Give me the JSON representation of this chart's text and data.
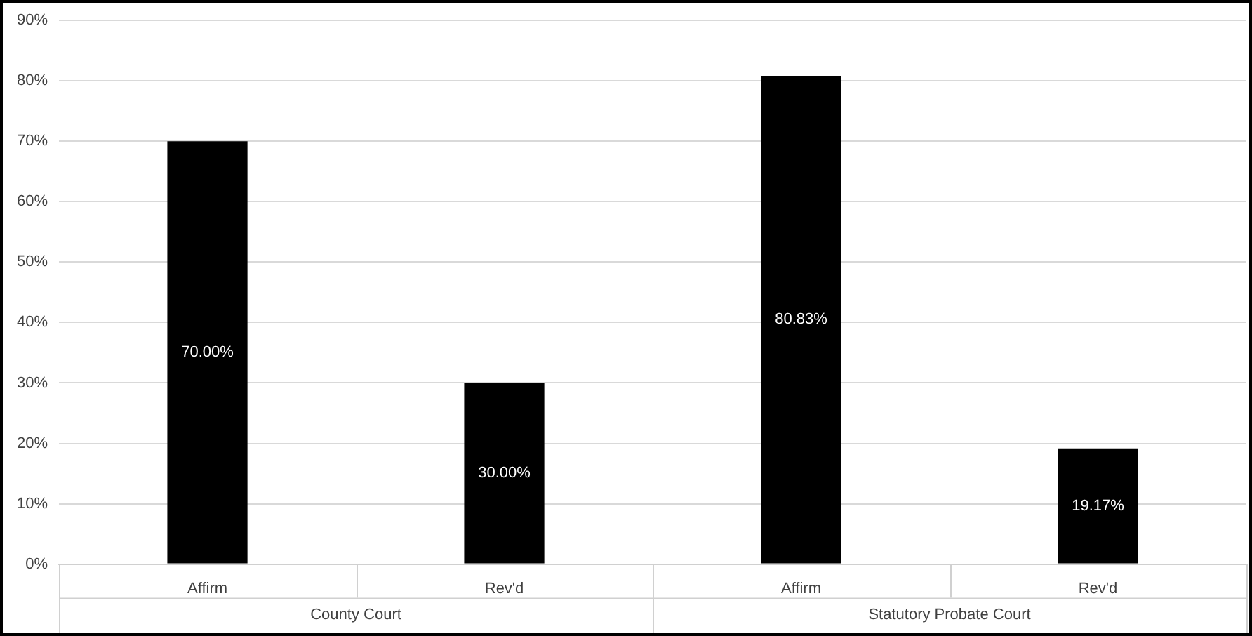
{
  "chart_data": {
    "type": "bar",
    "categories": [
      "Affirm",
      "Rev'd",
      "Affirm",
      "Rev'd"
    ],
    "values": [
      70,
      30,
      80.83,
      19.17
    ],
    "color": "#000000",
    "value_labels": [
      "70.00%",
      "30.00%",
      "80.83%",
      "19.17%"
    ],
    "annotations": [
      "County Court",
      "Statutory Probate Court"
    ],
    "ylim": [
      0,
      90
    ],
    "yticks": [
      {
        "value": 0,
        "label": "0%"
      },
      {
        "value": 10,
        "label": "10%"
      },
      {
        "value": 20,
        "label": "20%"
      },
      {
        "value": 30,
        "label": "30%"
      },
      {
        "value": 40,
        "label": "40%"
      },
      {
        "value": 50,
        "label": "50%"
      },
      {
        "value": 60,
        "label": "60%"
      },
      {
        "value": 70,
        "label": "70%"
      },
      {
        "value": 80,
        "label": "80%"
      },
      {
        "value": 90,
        "label": "90%"
      }
    ],
    "grid": "y",
    "legend": false
  }
}
